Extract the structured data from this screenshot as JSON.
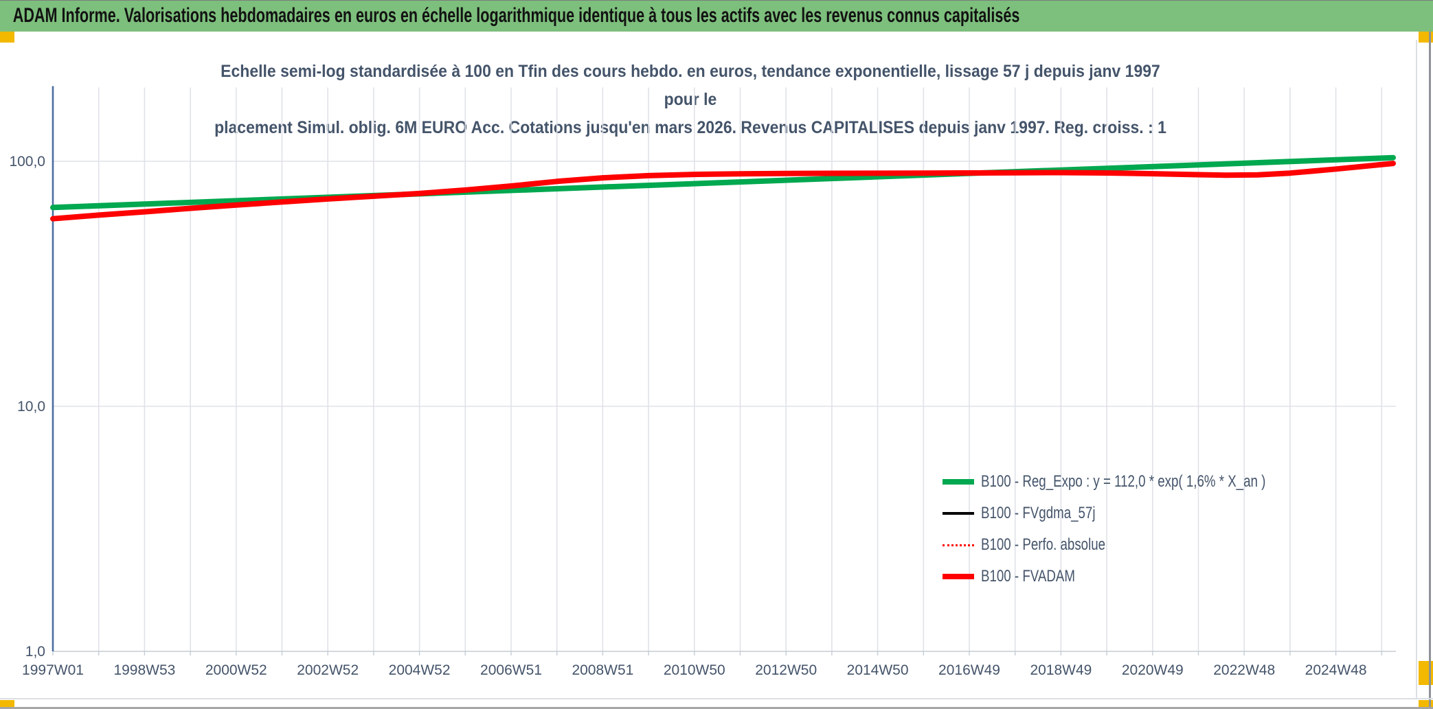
{
  "banner": {
    "title": "ADAM Informe. Valorisations hebdomadaires en euros en échelle logarithmique identique à tous les actifs avec les revenus connus capitalisés",
    "background_color": "#7dbf7c",
    "accent_color": "#f3b800"
  },
  "chart_data": {
    "type": "line",
    "title_lines": [
      "Echelle semi-log standardisée à 100 en Tfin des cours hebdo. en euros, tendance exponentielle, lissage 57 j depuis janv 1997 pour le",
      "placement Simul. oblig. 6M EURO Acc. Cotations jusqu'en mars 2026. Revenus CAPITALISES depuis janv 1997. Reg. croiss. : 1"
    ],
    "title_color": "#44546a",
    "grid": "on",
    "legend_position": "right-lower",
    "xlim": [
      1997.0,
      2026.3
    ],
    "ylim": [
      1,
      200
    ],
    "y_scale": "log",
    "x_axis": {
      "ticks": [
        {
          "label": "1997W01",
          "year": 1997
        },
        {
          "label": "1998W53",
          "year": 1999
        },
        {
          "label": "2000W52",
          "year": 2001
        },
        {
          "label": "2002W52",
          "year": 2003
        },
        {
          "label": "2004W52",
          "year": 2005
        },
        {
          "label": "2006W51",
          "year": 2007
        },
        {
          "label": "2008W51",
          "year": 2009
        },
        {
          "label": "2010W50",
          "year": 2011
        },
        {
          "label": "2012W50",
          "year": 2013
        },
        {
          "label": "2014W50",
          "year": 2015
        },
        {
          "label": "2016W49",
          "year": 2017
        },
        {
          "label": "2018W49",
          "year": 2019
        },
        {
          "label": "2020W49",
          "year": 2021
        },
        {
          "label": "2022W48",
          "year": 2023
        },
        {
          "label": "2024W48",
          "year": 2025
        }
      ]
    },
    "y_axis": {
      "ticks": [
        {
          "label": "100,0",
          "value": 100
        },
        {
          "label": "10,0",
          "value": 10
        },
        {
          "label": "1,0",
          "value": 1
        }
      ]
    },
    "series": [
      {
        "id": "reg_expo",
        "label": "B100 - Reg_Expo : y = 112,0 * exp( 1,6% *  X_an )",
        "color": "#00a84f",
        "style": "solid",
        "width": 8,
        "points": [
          [
            1997.0,
            64.8
          ],
          [
            2026.25,
            103.5
          ]
        ]
      },
      {
        "id": "fvgdma",
        "label": "B100 - FVgdma_57j",
        "color": "#000000",
        "style": "solid",
        "width": 3.5,
        "same_points_as": "fvadam"
      },
      {
        "id": "perfo",
        "label": "B100 - Perfo. absolue",
        "color": "#fe0000",
        "style": "dotted",
        "width": 2.5,
        "same_points_as": "fvadam"
      },
      {
        "id": "fvadam",
        "label": "B100 - FVADAM",
        "color": "#fe0000",
        "style": "solid",
        "width": 8,
        "points": [
          [
            1997.0,
            58.3
          ],
          [
            1998,
            60.3
          ],
          [
            1999,
            62.2
          ],
          [
            2000,
            64.3
          ],
          [
            2001,
            66.3
          ],
          [
            2002,
            68.2
          ],
          [
            2003,
            70.2
          ],
          [
            2004,
            72.0
          ],
          [
            2005,
            73.9
          ],
          [
            2006,
            76.3
          ],
          [
            2007,
            79.3
          ],
          [
            2008,
            82.8
          ],
          [
            2009,
            85.6
          ],
          [
            2010,
            87.4
          ],
          [
            2011,
            88.4
          ],
          [
            2012,
            88.9
          ],
          [
            2013,
            89.2
          ],
          [
            2014,
            89.3
          ],
          [
            2015,
            89.4
          ],
          [
            2016,
            89.5
          ],
          [
            2017,
            89.6
          ],
          [
            2018,
            89.8
          ],
          [
            2019,
            89.9
          ],
          [
            2020,
            89.6
          ],
          [
            2021,
            89.0
          ],
          [
            2022,
            88.2
          ],
          [
            2022.6,
            87.8
          ],
          [
            2023.3,
            88.0
          ],
          [
            2024,
            89.5
          ],
          [
            2025,
            93.0
          ],
          [
            2026.25,
            98.0
          ]
        ]
      }
    ]
  }
}
